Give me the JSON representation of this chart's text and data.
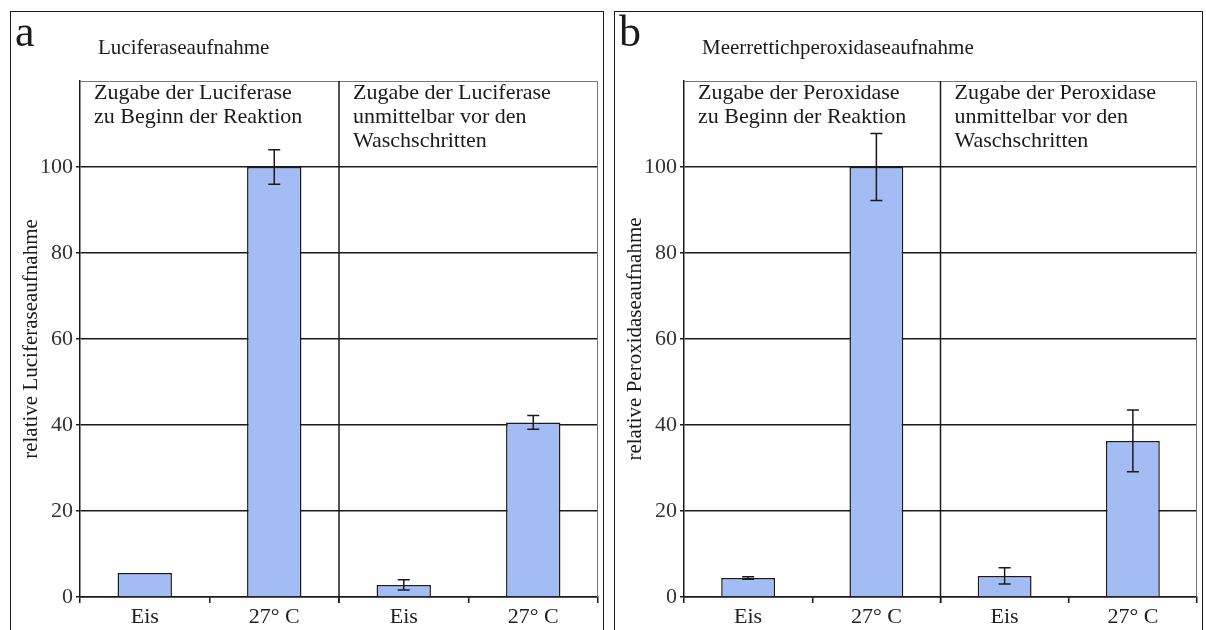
{
  "chart_data": [
    {
      "type": "bar",
      "title": "Luciferaseaufnahme",
      "ylabel": "relative Luciferaseaufnahme",
      "categories": [
        "Eis",
        "27° C",
        "Eis",
        "27° C"
      ],
      "values": [
        5.6,
        100,
        2.8,
        40.6
      ],
      "errors": [
        null,
        4,
        1.2,
        1.6
      ],
      "color": "#a4bcf4",
      "ylim": [
        0,
        120
      ],
      "yticks": [
        0,
        20,
        40,
        60,
        80,
        100
      ],
      "grid": "y",
      "annotations": [
        "a",
        "Zugabe der Luciferase\nzu Beginn der Reaktion",
        "Zugabe der Luciferase\nunmittelbar vor den\nWaschschritten"
      ]
    },
    {
      "type": "bar",
      "title": "Meerrettichperoxidaseaufnahme",
      "ylabel": "relative Peroxidaseaufnahme",
      "categories": [
        "Eis",
        "27° C",
        "Eis",
        "27° C"
      ],
      "values": [
        4.4,
        100,
        4.9,
        36.3
      ],
      "errors": [
        0.3,
        7.8,
        1.9,
        7.2
      ],
      "color": "#a4bcf4",
      "ylim": [
        0,
        120
      ],
      "yticks": [
        0,
        20,
        40,
        60,
        80,
        100
      ],
      "grid": "y",
      "annotations": [
        "b",
        "Zugabe der Peroxidase\nzu Beginn der Reaktion",
        "Zugabe der Peroxidase\nunmittelbar vor den\nWaschschritten"
      ]
    }
  ]
}
